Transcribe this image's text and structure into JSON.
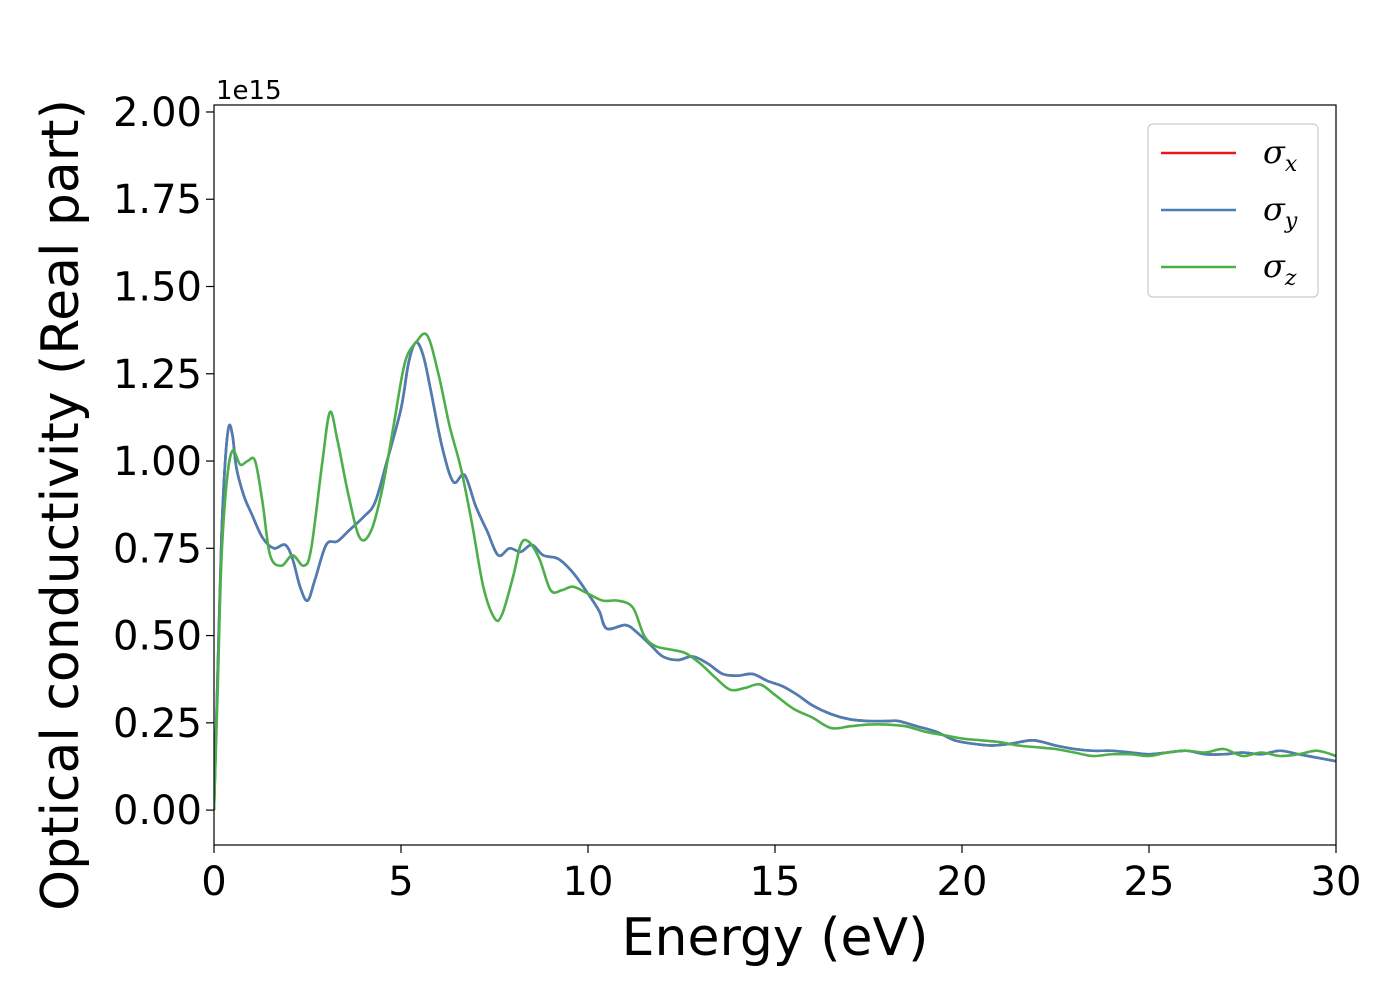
{
  "chart_data": {
    "type": "line",
    "title": "",
    "xlabel": "Energy (eV)",
    "ylabel": "Optical conductivity (Real part)",
    "y_offset_label": "1e15",
    "y_scale": 1000000000000000.0,
    "xlim": [
      0,
      30
    ],
    "ylim": [
      -0.1,
      2.02
    ],
    "xticks": [
      0,
      5,
      10,
      15,
      20,
      25,
      30
    ],
    "xtick_labels": [
      "0",
      "5",
      "10",
      "15",
      "20",
      "25",
      "30"
    ],
    "yticks": [
      0.0,
      0.25,
      0.5,
      0.75,
      1.0,
      1.25,
      1.5,
      1.75,
      2.0
    ],
    "ytick_labels": [
      "0.00",
      "0.25",
      "0.50",
      "0.75",
      "1.00",
      "1.25",
      "1.50",
      "1.75",
      "2.00"
    ],
    "grid": false,
    "legend_position": "top-right",
    "series": [
      {
        "name": "σx",
        "symbol": "σ",
        "subscript": "x",
        "color": "#e41a1c",
        "x": [
          0,
          0.1,
          0.2,
          0.3,
          0.4,
          0.5,
          0.6,
          0.8,
          1.0,
          1.3,
          1.6,
          1.9,
          2.1,
          2.3,
          2.5,
          2.7,
          3.0,
          3.3,
          3.6,
          4.0,
          4.3,
          4.6,
          5.0,
          5.2,
          5.4,
          5.6,
          5.8,
          6.1,
          6.4,
          6.7,
          7.0,
          7.3,
          7.6,
          7.9,
          8.2,
          8.5,
          8.8,
          9.2,
          9.6,
          10.0,
          10.3,
          10.5,
          11.0,
          11.3,
          11.7,
          12.0,
          12.4,
          12.8,
          13.2,
          13.6,
          14.0,
          14.4,
          14.8,
          15.2,
          15.6,
          16.0,
          16.5,
          17.0,
          17.5,
          18.0,
          18.3,
          18.8,
          19.3,
          19.8,
          20.3,
          20.8,
          21.3,
          21.9,
          22.5,
          23.0,
          23.5,
          24.0,
          24.5,
          25.0,
          25.5,
          26.0,
          26.5,
          27.0,
          27.5,
          28.0,
          28.5,
          29.0,
          29.5,
          30.0
        ],
        "y": [
          0.0,
          0.4,
          0.78,
          1.0,
          1.1,
          1.07,
          0.98,
          0.9,
          0.85,
          0.78,
          0.75,
          0.76,
          0.72,
          0.64,
          0.6,
          0.66,
          0.76,
          0.77,
          0.8,
          0.84,
          0.88,
          0.99,
          1.15,
          1.28,
          1.34,
          1.3,
          1.2,
          1.04,
          0.94,
          0.96,
          0.87,
          0.8,
          0.73,
          0.75,
          0.74,
          0.76,
          0.73,
          0.72,
          0.68,
          0.62,
          0.57,
          0.52,
          0.53,
          0.51,
          0.47,
          0.44,
          0.43,
          0.44,
          0.42,
          0.39,
          0.385,
          0.39,
          0.37,
          0.355,
          0.33,
          0.3,
          0.275,
          0.26,
          0.255,
          0.255,
          0.255,
          0.24,
          0.225,
          0.2,
          0.19,
          0.185,
          0.19,
          0.2,
          0.185,
          0.175,
          0.17,
          0.17,
          0.165,
          0.16,
          0.165,
          0.17,
          0.16,
          0.16,
          0.165,
          0.16,
          0.17,
          0.16,
          0.15,
          0.14
        ]
      },
      {
        "name": "σy",
        "symbol": "σ",
        "subscript": "y",
        "color": "#4a7fb5",
        "x": [
          0,
          0.1,
          0.2,
          0.3,
          0.4,
          0.5,
          0.6,
          0.8,
          1.0,
          1.3,
          1.6,
          1.9,
          2.1,
          2.3,
          2.5,
          2.7,
          3.0,
          3.3,
          3.6,
          4.0,
          4.3,
          4.6,
          5.0,
          5.2,
          5.4,
          5.6,
          5.8,
          6.1,
          6.4,
          6.7,
          7.0,
          7.3,
          7.6,
          7.9,
          8.2,
          8.5,
          8.8,
          9.2,
          9.6,
          10.0,
          10.3,
          10.5,
          11.0,
          11.3,
          11.7,
          12.0,
          12.4,
          12.8,
          13.2,
          13.6,
          14.0,
          14.4,
          14.8,
          15.2,
          15.6,
          16.0,
          16.5,
          17.0,
          17.5,
          18.0,
          18.3,
          18.8,
          19.3,
          19.8,
          20.3,
          20.8,
          21.3,
          21.9,
          22.5,
          23.0,
          23.5,
          24.0,
          24.5,
          25.0,
          25.5,
          26.0,
          26.5,
          27.0,
          27.5,
          28.0,
          28.5,
          29.0,
          29.5,
          30.0
        ],
        "y": [
          0.0,
          0.4,
          0.78,
          1.0,
          1.1,
          1.07,
          0.98,
          0.9,
          0.85,
          0.78,
          0.75,
          0.76,
          0.72,
          0.64,
          0.6,
          0.66,
          0.76,
          0.77,
          0.8,
          0.84,
          0.88,
          0.99,
          1.15,
          1.28,
          1.34,
          1.3,
          1.2,
          1.04,
          0.94,
          0.96,
          0.87,
          0.8,
          0.73,
          0.75,
          0.74,
          0.76,
          0.73,
          0.72,
          0.68,
          0.62,
          0.57,
          0.52,
          0.53,
          0.51,
          0.47,
          0.44,
          0.43,
          0.44,
          0.42,
          0.39,
          0.385,
          0.39,
          0.37,
          0.355,
          0.33,
          0.3,
          0.275,
          0.26,
          0.255,
          0.255,
          0.255,
          0.24,
          0.225,
          0.2,
          0.19,
          0.185,
          0.19,
          0.2,
          0.185,
          0.175,
          0.17,
          0.17,
          0.165,
          0.16,
          0.165,
          0.17,
          0.16,
          0.16,
          0.165,
          0.16,
          0.17,
          0.16,
          0.15,
          0.14
        ]
      },
      {
        "name": "σz",
        "symbol": "σ",
        "subscript": "z",
        "color": "#4daf4a",
        "x": [
          0,
          0.1,
          0.2,
          0.35,
          0.5,
          0.7,
          0.9,
          1.1,
          1.3,
          1.5,
          1.8,
          2.1,
          2.4,
          2.6,
          2.9,
          3.1,
          3.3,
          3.6,
          3.9,
          4.2,
          4.5,
          4.8,
          5.1,
          5.4,
          5.7,
          6.0,
          6.3,
          6.6,
          6.9,
          7.2,
          7.5,
          7.7,
          8.0,
          8.2,
          8.4,
          8.7,
          9.0,
          9.3,
          9.6,
          10.0,
          10.4,
          10.8,
          11.2,
          11.5,
          11.8,
          12.2,
          12.6,
          13.0,
          13.4,
          13.8,
          14.2,
          14.6,
          15.0,
          15.5,
          16.0,
          16.5,
          17.0,
          17.5,
          18.0,
          18.5,
          19.0,
          19.5,
          20.0,
          20.5,
          21.0,
          21.5,
          22.0,
          22.5,
          23.0,
          23.5,
          24.0,
          24.5,
          25.0,
          25.5,
          26.0,
          26.5,
          27.0,
          27.5,
          28.0,
          28.5,
          29.0,
          29.5,
          30.0
        ],
        "y": [
          0.0,
          0.35,
          0.72,
          0.95,
          1.03,
          0.99,
          1.0,
          1.0,
          0.88,
          0.73,
          0.7,
          0.73,
          0.7,
          0.75,
          1.0,
          1.14,
          1.06,
          0.9,
          0.78,
          0.8,
          0.92,
          1.1,
          1.28,
          1.34,
          1.36,
          1.25,
          1.1,
          0.98,
          0.82,
          0.64,
          0.55,
          0.56,
          0.67,
          0.76,
          0.77,
          0.72,
          0.63,
          0.63,
          0.64,
          0.62,
          0.6,
          0.6,
          0.58,
          0.5,
          0.47,
          0.46,
          0.45,
          0.42,
          0.38,
          0.345,
          0.35,
          0.36,
          0.33,
          0.29,
          0.265,
          0.235,
          0.24,
          0.245,
          0.245,
          0.24,
          0.225,
          0.215,
          0.205,
          0.2,
          0.195,
          0.185,
          0.18,
          0.175,
          0.165,
          0.155,
          0.16,
          0.16,
          0.155,
          0.165,
          0.17,
          0.165,
          0.175,
          0.155,
          0.165,
          0.155,
          0.16,
          0.17,
          0.155
        ]
      }
    ]
  }
}
